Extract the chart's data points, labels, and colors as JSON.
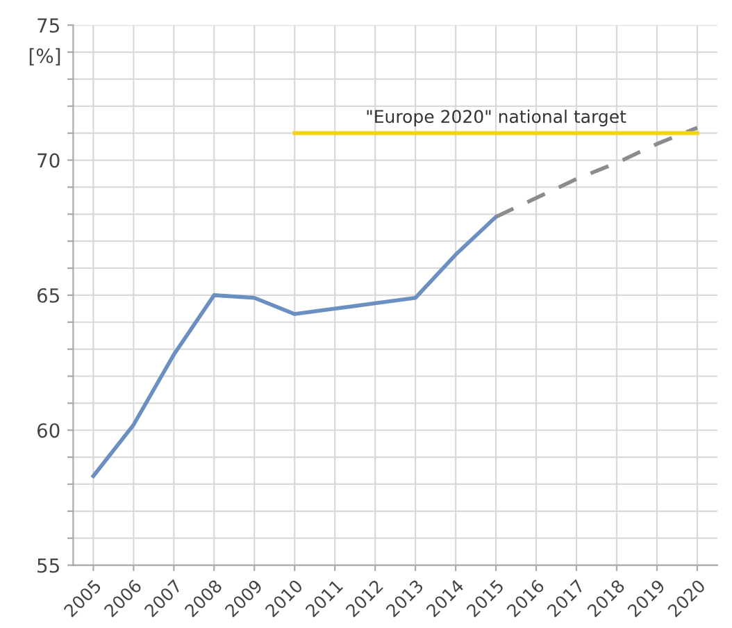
{
  "chart_data": {
    "type": "line",
    "ylabel": "[%]",
    "categories": [
      "2005",
      "2006",
      "2007",
      "2008",
      "2009",
      "2010",
      "2011",
      "2012",
      "2013",
      "2014",
      "2015",
      "2016",
      "2017",
      "2018",
      "2019",
      "2020"
    ],
    "series": [
      {
        "color": "#6a8fc0",
        "line_style": "solid",
        "values": [
          58.3,
          60.2,
          62.8,
          65.0,
          64.9,
          64.3,
          64.5,
          64.7,
          64.9,
          66.5,
          67.9,
          null,
          null,
          null,
          null,
          null
        ]
      },
      {
        "color": "#8c8c8c",
        "line_style": "dashed",
        "values": [
          null,
          null,
          null,
          null,
          null,
          null,
          null,
          null,
          null,
          null,
          67.9,
          68.6,
          69.3,
          69.9,
          70.6,
          71.2
        ]
      },
      {
        "name": "\"Europe 2020\" national target",
        "color": "#f2d21b",
        "line_style": "solid",
        "values": [
          null,
          null,
          null,
          null,
          null,
          71.0,
          71.0,
          71.0,
          71.0,
          71.0,
          71.0,
          71.0,
          71.0,
          71.0,
          71.0,
          71.0
        ]
      }
    ],
    "ylim": [
      55,
      75
    ],
    "yticks": [
      55,
      {
        "value": 56,
        "label": null
      },
      {
        "value": 57,
        "label": null
      },
      {
        "value": 58,
        "label": null
      },
      {
        "value": 59,
        "label": null
      },
      60,
      {
        "value": 61,
        "label": null
      },
      {
        "value": 62,
        "label": null
      },
      {
        "value": 63,
        "label": null
      },
      {
        "value": 64,
        "label": null
      },
      65,
      {
        "value": 66,
        "label": null
      },
      {
        "value": 67,
        "label": null
      },
      {
        "value": 68,
        "label": null
      },
      {
        "value": 69,
        "label": null
      },
      70,
      {
        "value": 71,
        "label": null
      },
      {
        "value": 72,
        "label": null
      },
      {
        "value": 73,
        "label": null
      },
      {
        "value": 74,
        "label": null
      },
      75
    ],
    "grid": true,
    "marker": "none"
  }
}
